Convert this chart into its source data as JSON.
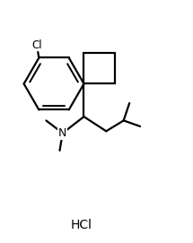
{
  "background_color": "#ffffff",
  "line_color": "#000000",
  "line_width": 1.6,
  "fig_width": 2.15,
  "fig_height": 2.71,
  "dpi": 100,
  "hcl_label": "HCl",
  "cl_label": "Cl",
  "n_label": "N"
}
